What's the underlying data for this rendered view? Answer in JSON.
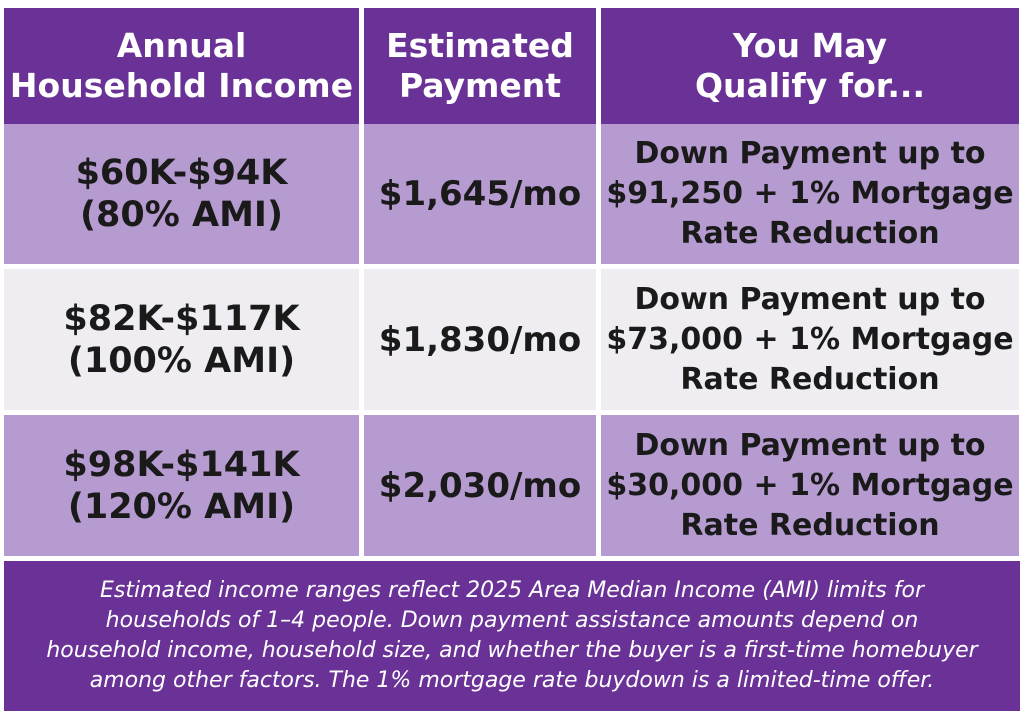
{
  "table": {
    "headers": [
      "Annual\nHousehold Income",
      "Estimated\nPayment",
      "You May\nQualify for..."
    ],
    "rows": [
      {
        "income": "$60K-$94K\n(80% AMI)",
        "payment": "$1,645/mo",
        "qualify": "Down Payment up to\n$91,250 + 1% Mortgage\nRate Reduction"
      },
      {
        "income": "$82K-$117K\n(100% AMI)",
        "payment": "$1,830/mo",
        "qualify": "Down Payment up to\n$73,000 + 1% Mortgage\nRate Reduction"
      },
      {
        "income": "$98K-$141K\n(120% AMI)",
        "payment": "$2,030/mo",
        "qualify": "Down Payment up to\n$30,000 + 1% Mortgage\nRate Reduction"
      }
    ]
  },
  "footer": {
    "note": "Estimated income ranges reflect 2025 Area Median Income (AMI) limits for\nhouseholds of 1–4 people. Down payment assistance amounts depend on\nhousehold income, household size, and whether the buyer is a first-time homebuyer\namong other factors. The 1% mortgage rate buydown is a limited-time offer."
  },
  "colors": {
    "header_purple": "#6a3297",
    "row_lavender": "#b59bcf",
    "row_light": "#efedf2"
  }
}
